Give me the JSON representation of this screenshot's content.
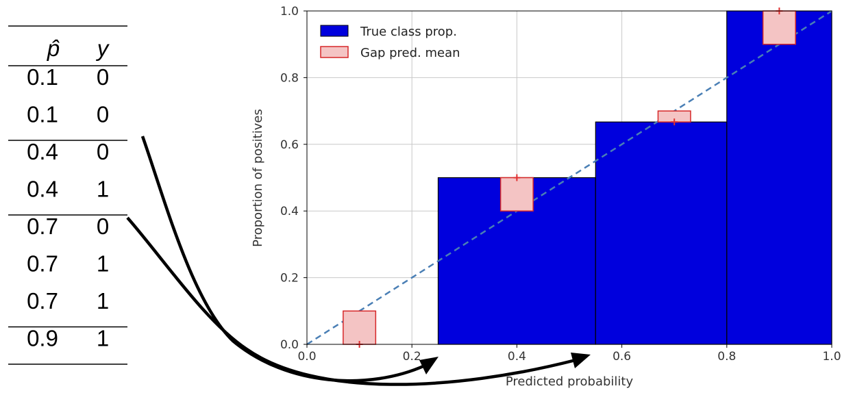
{
  "table": {
    "headers": [
      "p̂",
      "y"
    ],
    "groups": [
      [
        [
          "0.1",
          "0"
        ],
        [
          "0.1",
          "0"
        ]
      ],
      [
        [
          "0.4",
          "0"
        ],
        [
          "0.4",
          "1"
        ]
      ],
      [
        [
          "0.7",
          "0"
        ],
        [
          "0.7",
          "1"
        ],
        [
          "0.7",
          "1"
        ]
      ],
      [
        [
          "0.9",
          "1"
        ]
      ]
    ]
  },
  "chart_data": {
    "type": "bar",
    "xlabel": "Predicted probability",
    "ylabel": "Proportion of positives",
    "xlim": [
      0.0,
      1.0
    ],
    "ylim": [
      0.0,
      1.0
    ],
    "xticks": [
      "0.0",
      "0.2",
      "0.4",
      "0.6",
      "0.8",
      "1.0"
    ],
    "yticks": [
      "0.0",
      "0.2",
      "0.4",
      "0.6",
      "0.8",
      "1.0"
    ],
    "grid": true,
    "legend_position": "top-left",
    "diagonal": true,
    "series": [
      {
        "name": "True class prop.",
        "color": "#0000dd",
        "bins": [
          {
            "x0": 0.25,
            "x1": 0.55,
            "value": 0.5
          },
          {
            "x0": 0.55,
            "x1": 0.8,
            "value": 0.667
          },
          {
            "x0": 0.8,
            "x1": 1.0,
            "value": 1.0
          }
        ]
      },
      {
        "name": "Gap pred. mean",
        "fill": "#f4c4c4",
        "edge": "#d62728",
        "gaps": [
          {
            "center": 0.1,
            "from": 0.0,
            "to": 0.1
          },
          {
            "center": 0.4,
            "from": 0.4,
            "to": 0.5
          },
          {
            "center": 0.7,
            "from": 0.667,
            "to": 0.7
          },
          {
            "center": 0.9,
            "from": 0.9,
            "to": 1.0
          }
        ]
      }
    ],
    "markers": [
      {
        "x": 0.1,
        "y": 0.0
      },
      {
        "x": 0.4,
        "y": 0.5
      },
      {
        "x": 0.7,
        "y": 0.667
      },
      {
        "x": 0.9,
        "y": 1.0
      }
    ]
  },
  "colors": {
    "diagonal": "#4a7fb5",
    "grid": "#c8c8c8",
    "marker": "#e03030",
    "arrow": "#000000"
  }
}
